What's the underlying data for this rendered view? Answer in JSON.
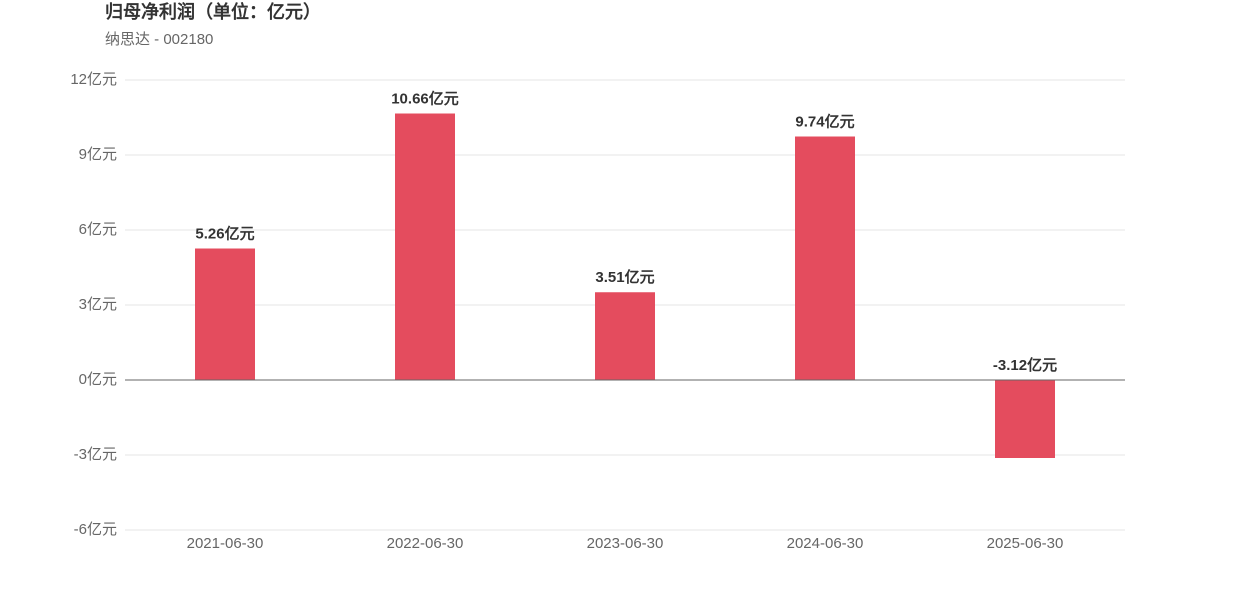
{
  "chart_data": {
    "type": "bar",
    "title": "归母净利润（单位：亿元）",
    "subtitle": "纳思达 - 002180",
    "categories": [
      "2021-06-30",
      "2022-06-30",
      "2023-06-30",
      "2024-06-30",
      "2025-06-30"
    ],
    "values": [
      5.26,
      10.66,
      3.51,
      9.74,
      -3.12
    ],
    "value_labels": [
      "5.26亿元",
      "10.66亿元",
      "3.51亿元",
      "9.74亿元",
      "-3.12亿元"
    ],
    "color": "#e44c5e",
    "ylim": [
      -6,
      12
    ],
    "yticks": [
      {
        "value": -6,
        "label": "-6亿元"
      },
      {
        "value": -3,
        "label": "-3亿元"
      },
      {
        "value": 0,
        "label": "0亿元"
      },
      {
        "value": 3,
        "label": "3亿元"
      },
      {
        "value": 6,
        "label": "6亿元"
      },
      {
        "value": 9,
        "label": "9亿元"
      },
      {
        "value": 12,
        "label": "12亿元"
      }
    ],
    "grid": true
  }
}
